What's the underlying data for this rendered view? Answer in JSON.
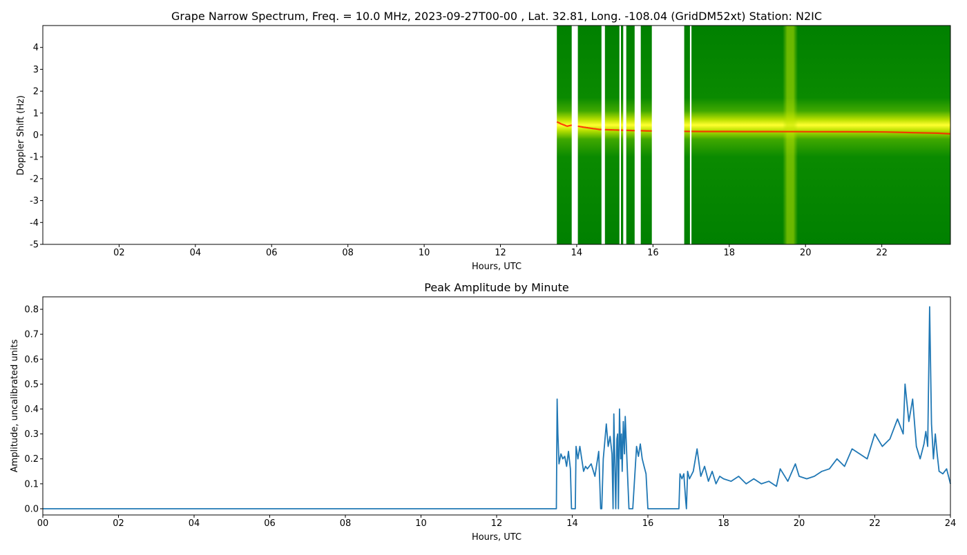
{
  "chart_data": [
    {
      "type": "heatmap",
      "title": "Grape Narrow Spectrum, Freq. = 10.0 MHz, 2023-09-27T00-00 , Lat.  32.81, Long. -108.04 (GridDM52xt) Station: N2IC",
      "xlabel": "Hours, UTC",
      "ylabel": "Doppler Shift (Hz)",
      "xlim": [
        0,
        23.8
      ],
      "ylim": [
        -5,
        5
      ],
      "x_ticks": [
        "02",
        "04",
        "06",
        "08",
        "10",
        "12",
        "14",
        "16",
        "18",
        "20",
        "22"
      ],
      "x_tick_values": [
        2,
        4,
        6,
        8,
        10,
        12,
        14,
        16,
        18,
        20,
        22
      ],
      "y_ticks": [
        "4",
        "3",
        "2",
        "1",
        "0",
        "-1",
        "-2",
        "-3",
        "-4",
        "-5"
      ],
      "y_tick_values": [
        4,
        3,
        2,
        1,
        0,
        -1,
        -2,
        -3,
        -4,
        -5
      ],
      "data_segments": [
        [
          13.48,
          13.87
        ],
        [
          14.03,
          14.65
        ],
        [
          14.74,
          15.12
        ],
        [
          15.16,
          15.22
        ],
        [
          15.3,
          15.52
        ],
        [
          15.68,
          15.97
        ],
        [
          16.82,
          16.97
        ],
        [
          17.01,
          23.8
        ]
      ],
      "carrier_line": {
        "color": "#ff2000",
        "points": [
          [
            13.48,
            0.6
          ],
          [
            13.6,
            0.5
          ],
          [
            13.75,
            0.4
          ],
          [
            13.87,
            0.45
          ],
          [
            14.2,
            0.35
          ],
          [
            14.6,
            0.25
          ],
          [
            15.5,
            0.2
          ],
          [
            16.0,
            0.18
          ],
          [
            17.0,
            0.16
          ],
          [
            20.0,
            0.15
          ],
          [
            22.0,
            0.14
          ],
          [
            23.5,
            0.08
          ],
          [
            23.8,
            0.05
          ]
        ]
      },
      "bright_band": [
        19.4,
        19.8
      ],
      "colors": {
        "background": "#008000",
        "mid": "#66cc00",
        "high": "#ffff00",
        "peak": "#ff2000"
      }
    },
    {
      "type": "line",
      "title": "Peak Amplitude by Minute",
      "xlabel": "Hours, UTC",
      "ylabel": "Amplitude, uncalibrated units",
      "xlim": [
        0,
        24
      ],
      "ylim": [
        -0.025,
        0.85
      ],
      "x_ticks": [
        "00",
        "02",
        "04",
        "06",
        "08",
        "10",
        "12",
        "14",
        "16",
        "18",
        "20",
        "22",
        "24"
      ],
      "x_tick_values": [
        0,
        2,
        4,
        6,
        8,
        10,
        12,
        14,
        16,
        18,
        20,
        22,
        24
      ],
      "y_ticks": [
        "0.0",
        "0.1",
        "0.2",
        "0.3",
        "0.4",
        "0.5",
        "0.6",
        "0.7",
        "0.8"
      ],
      "y_tick_values": [
        0,
        0.1,
        0.2,
        0.3,
        0.4,
        0.5,
        0.6,
        0.7,
        0.8
      ],
      "line_color": "#1f77b4",
      "series": [
        {
          "x": [
            0,
            13.58,
            13.6,
            13.62,
            13.65,
            13.7,
            13.75,
            13.8,
            13.85,
            13.9,
            13.95,
            13.98,
            14.0,
            14.08,
            14.1,
            14.15,
            14.2,
            14.3,
            14.35,
            14.4,
            14.5,
            14.6,
            14.7,
            14.75,
            14.78,
            14.82,
            14.85,
            14.9,
            14.95,
            15.0,
            15.05,
            15.08,
            15.1,
            15.15,
            15.18,
            15.2,
            15.22,
            15.25,
            15.28,
            15.3,
            15.32,
            15.35,
            15.38,
            15.4,
            15.45,
            15.5,
            15.52,
            15.55,
            15.6,
            15.7,
            15.75,
            15.8,
            15.85,
            15.9,
            15.95,
            16.0,
            16.05,
            16.15,
            16.5,
            16.82,
            16.85,
            16.9,
            16.95,
            17.0,
            17.02,
            17.05,
            17.1,
            17.2,
            17.3,
            17.4,
            17.5,
            17.6,
            17.7,
            17.8,
            17.9,
            18.0,
            18.2,
            18.4,
            18.6,
            18.8,
            19.0,
            19.2,
            19.4,
            19.5,
            19.7,
            19.9,
            20.0,
            20.2,
            20.4,
            20.6,
            20.8,
            21.0,
            21.2,
            21.4,
            21.6,
            21.8,
            22.0,
            22.2,
            22.4,
            22.6,
            22.75,
            22.8,
            22.9,
            23.0,
            23.1,
            23.2,
            23.3,
            23.35,
            23.4,
            23.45,
            23.5,
            23.55,
            23.6,
            23.65,
            23.7,
            23.8,
            23.9,
            24.0
          ],
          "values": [
            0.0,
            0.0,
            0.44,
            0.3,
            0.18,
            0.22,
            0.2,
            0.21,
            0.17,
            0.23,
            0.16,
            0.0,
            0.0,
            0.0,
            0.25,
            0.2,
            0.25,
            0.15,
            0.17,
            0.16,
            0.18,
            0.13,
            0.23,
            0.0,
            0.0,
            0.2,
            0.25,
            0.34,
            0.25,
            0.29,
            0.22,
            0.0,
            0.38,
            0.0,
            0.28,
            0.3,
            0.0,
            0.4,
            0.2,
            0.3,
            0.15,
            0.35,
            0.22,
            0.37,
            0.18,
            0.0,
            0.0,
            0.0,
            0.0,
            0.25,
            0.21,
            0.26,
            0.2,
            0.17,
            0.14,
            0.0,
            0.0,
            0.0,
            0.0,
            0.0,
            0.14,
            0.12,
            0.14,
            0.03,
            0.0,
            0.15,
            0.12,
            0.15,
            0.24,
            0.13,
            0.17,
            0.11,
            0.15,
            0.1,
            0.13,
            0.12,
            0.11,
            0.13,
            0.1,
            0.12,
            0.1,
            0.11,
            0.09,
            0.16,
            0.11,
            0.18,
            0.13,
            0.12,
            0.13,
            0.15,
            0.16,
            0.2,
            0.17,
            0.24,
            0.22,
            0.2,
            0.3,
            0.25,
            0.28,
            0.36,
            0.3,
            0.5,
            0.35,
            0.44,
            0.25,
            0.2,
            0.26,
            0.31,
            0.25,
            0.81,
            0.34,
            0.2,
            0.3,
            0.22,
            0.15,
            0.14,
            0.16,
            0.1
          ]
        }
      ]
    }
  ]
}
